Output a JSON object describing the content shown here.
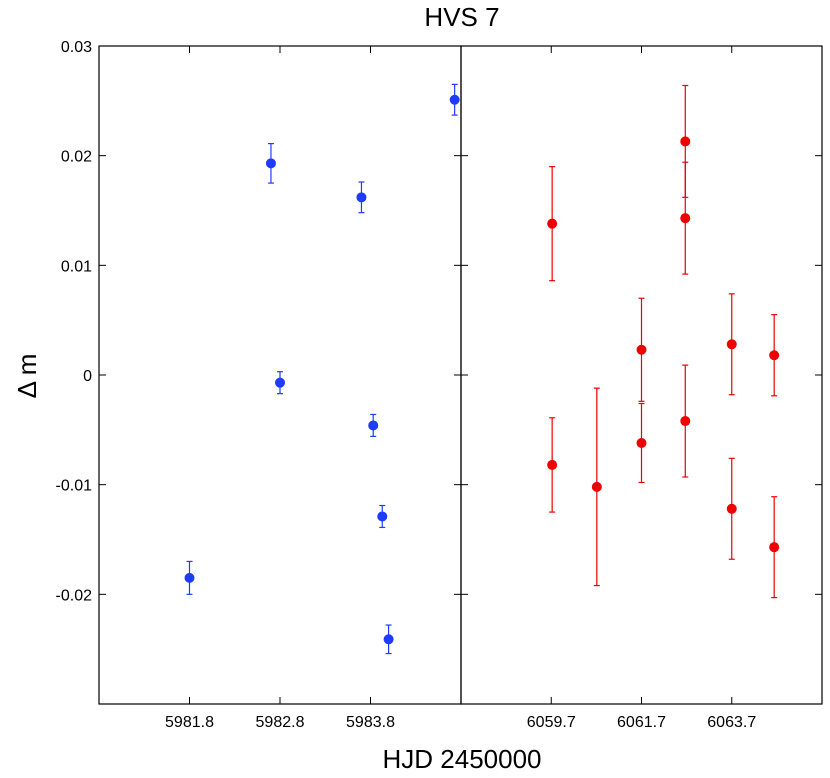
{
  "chart_data": {
    "type": "scatter",
    "title": "HVS 7",
    "ylabel": "Δ m",
    "xlabel": "HJD 2450000",
    "ylim": [
      -0.03,
      0.03
    ],
    "yticks": [
      0.03,
      0.02,
      0.01,
      0,
      -0.01,
      -0.02
    ],
    "ytick_labels": [
      "0.03",
      "0.02",
      "0.01",
      "0",
      "-0.01",
      "-0.02"
    ],
    "grid": false,
    "panels": [
      {
        "name": "left",
        "xlim": [
          5980.8,
          5984.8
        ],
        "xticks": [
          5981.8,
          5982.8,
          5983.8
        ],
        "xtick_labels": [
          "5981.8",
          "5982.8",
          "5983.8"
        ],
        "series": [
          {
            "color": "#1f3bff",
            "points": [
              {
                "x": 5981.8,
                "y": -0.0185,
                "err": 0.0015
              },
              {
                "x": 5982.7,
                "y": 0.0193,
                "err": 0.0018
              },
              {
                "x": 5982.8,
                "y": -0.0007,
                "err": 0.001
              },
              {
                "x": 5983.7,
                "y": 0.0162,
                "err": 0.0014
              },
              {
                "x": 5983.83,
                "y": -0.0046,
                "err": 0.001
              },
              {
                "x": 5983.93,
                "y": -0.0129,
                "err": 0.001
              },
              {
                "x": 5984.0,
                "y": -0.0241,
                "err": 0.0013
              },
              {
                "x": 5984.73,
                "y": 0.0251,
                "err": 0.0014
              }
            ]
          }
        ]
      },
      {
        "name": "right",
        "xlim": [
          6057.7,
          6065.7
        ],
        "xticks": [
          6059.7,
          6061.7,
          6063.7
        ],
        "xtick_labels": [
          "6059.7",
          "6061.7",
          "6063.7"
        ],
        "series": [
          {
            "color": "#ee0000",
            "points": [
              {
                "x": 6059.72,
                "y": 0.0138,
                "err": 0.0052
              },
              {
                "x": 6059.72,
                "y": -0.0082,
                "err": 0.0043
              },
              {
                "x": 6060.71,
                "y": -0.0102,
                "err": 0.009
              },
              {
                "x": 6061.7,
                "y": 0.0023,
                "err": 0.0047
              },
              {
                "x": 6061.7,
                "y": -0.0062,
                "err": 0.0036
              },
              {
                "x": 6062.67,
                "y": 0.0213,
                "err": 0.0051
              },
              {
                "x": 6062.67,
                "y": 0.0143,
                "err": 0.0051
              },
              {
                "x": 6062.67,
                "y": -0.0042,
                "err": 0.0051
              },
              {
                "x": 6063.7,
                "y": 0.0028,
                "err": 0.0046
              },
              {
                "x": 6063.7,
                "y": -0.0122,
                "err": 0.0046
              },
              {
                "x": 6064.64,
                "y": 0.0018,
                "err": 0.0037
              },
              {
                "x": 6064.64,
                "y": -0.0157,
                "err": 0.0046
              }
            ]
          }
        ]
      }
    ]
  }
}
